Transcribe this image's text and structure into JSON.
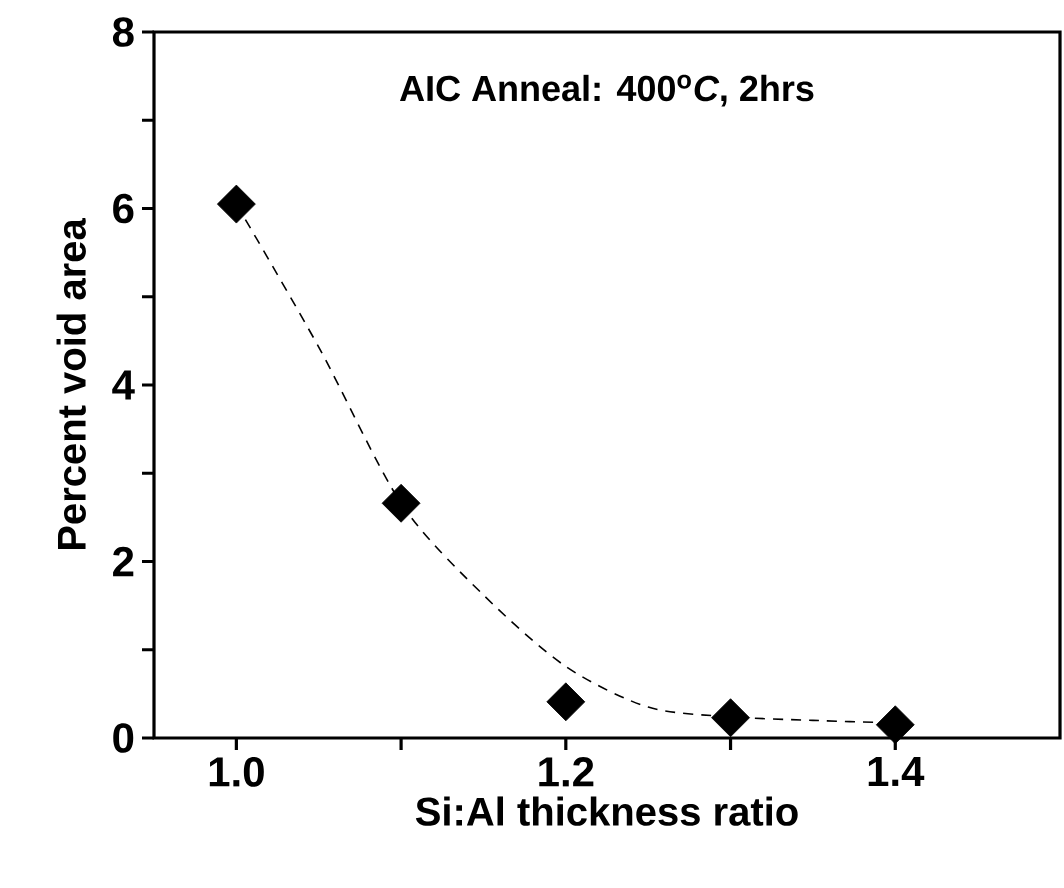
{
  "chart_data": {
    "type": "scatter",
    "title": "AIC Anneal: 400$^{o}$*C*, 2hrs",
    "xlabel": "Si:Al thickness ratio",
    "ylabel": "Percent void area",
    "xlim": [
      0.95,
      1.5
    ],
    "ylim": [
      0,
      8
    ],
    "xticks": [
      {
        "value": 1.0,
        "label": "1.0"
      },
      {
        "value": 1.1,
        "label": null
      },
      {
        "value": 1.2,
        "label": "1.2"
      },
      {
        "value": 1.3,
        "label": null
      },
      {
        "value": 1.4,
        "label": "1.4"
      }
    ],
    "yticks": [
      0,
      {
        "value": 1,
        "label": null
      },
      2,
      {
        "value": 3,
        "label": null
      },
      4,
      {
        "value": 5,
        "label": null
      },
      6,
      {
        "value": 7,
        "label": null
      },
      8
    ],
    "series": [
      {
        "color": "#000000",
        "marker": "diamond",
        "x": [
          1.0,
          1.1,
          1.2,
          1.3,
          1.4
        ],
        "values": [
          6.05,
          2.66,
          0.41,
          0.23,
          0.15
        ]
      },
      {
        "type": "line",
        "color": "#000000",
        "line_style": "dashed",
        "marker": "none",
        "x": [
          1.0,
          1.05,
          1.1,
          1.15,
          1.2,
          1.25,
          1.3,
          1.35,
          1.4
        ],
        "values": [
          6.05,
          4.43,
          2.66,
          1.62,
          0.81,
          0.35,
          0.24,
          0.2,
          0.17
        ]
      }
    ],
    "grid": false
  }
}
